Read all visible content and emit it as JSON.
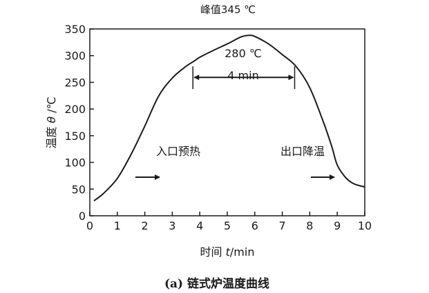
{
  "chart_data": {
    "type": "line",
    "peak_label": "峰值345 ℃",
    "xlabel_prefix": "时间 ",
    "xlabel_var": "t",
    "xlabel_unit": "/min",
    "ylabel_prefix": "温度 ",
    "ylabel_var": "θ",
    "ylabel_unit": " /℃",
    "caption": "(a) 链式炉温度曲线",
    "xlim": [
      0,
      10
    ],
    "ylim": [
      0,
      350
    ],
    "x_ticks": [
      "0",
      "1",
      "2",
      "3",
      "4",
      "5",
      "6",
      "7",
      "8",
      "9",
      "10"
    ],
    "y_ticks": [
      "0",
      "50",
      "100",
      "150",
      "200",
      "250",
      "300",
      "350"
    ],
    "series": [
      {
        "x": [
          0.15,
          0.5,
          1.0,
          1.5,
          2.0,
          2.5,
          3.0,
          3.5,
          3.8,
          4.0,
          4.5,
          5.0,
          5.5,
          5.8,
          6.0,
          6.5,
          7.0,
          7.5,
          8.0,
          8.5,
          8.8,
          9.0,
          9.3,
          9.6,
          10.0
        ],
        "values": [
          28,
          42,
          70,
          115,
          168,
          224,
          258,
          280,
          290,
          297,
          310,
          322,
          335,
          338,
          336,
          322,
          302,
          280,
          240,
          175,
          130,
          95,
          72,
          60,
          54
        ]
      }
    ],
    "annotations": {
      "hold_temp": "280 ℃",
      "hold_duration": "4 min",
      "hold_x_range": [
        3.75,
        7.45
      ],
      "hold_y": 280,
      "zone_in": "入口预热",
      "zone_out": "出口降温"
    }
  }
}
